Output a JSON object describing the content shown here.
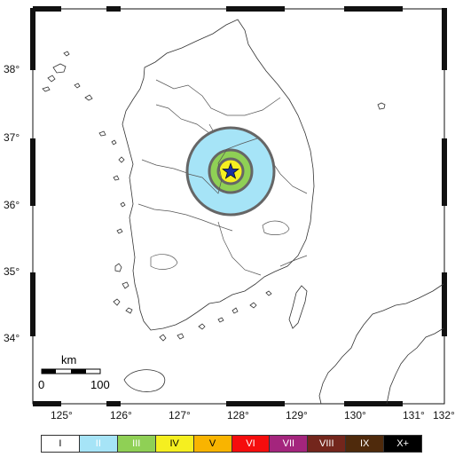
{
  "map": {
    "lon_ticks": [
      "125°",
      "126°",
      "127°",
      "128°",
      "129°",
      "130°",
      "131°",
      "132°"
    ],
    "lat_ticks": [
      "38°",
      "37°",
      "36°",
      "35°",
      "34°"
    ],
    "scale_bar": {
      "unit": "km",
      "start": "0",
      "end": "100"
    },
    "epicenter": {
      "lon": 128.05,
      "lat": 36.5,
      "marker": "star-icon",
      "color": "#1a2fa0"
    },
    "intensity_rings": [
      {
        "level": "II",
        "color": "#a6e4f7"
      },
      {
        "level": "III",
        "color": "#8fd055"
      },
      {
        "level": "IV",
        "color": "#f5ef20"
      }
    ]
  },
  "legend": {
    "items": [
      {
        "label": "I",
        "color": "#ffffff",
        "text_color": "#000000"
      },
      {
        "label": "II",
        "color": "#a6e4f7",
        "text_color": "#ffffff"
      },
      {
        "label": "III",
        "color": "#8fd055",
        "text_color": "#ffffff"
      },
      {
        "label": "IV",
        "color": "#f5ef20",
        "text_color": "#000000"
      },
      {
        "label": "V",
        "color": "#f9b400",
        "text_color": "#000000"
      },
      {
        "label": "VI",
        "color": "#f50d0d",
        "text_color": "#ffffff"
      },
      {
        "label": "VII",
        "color": "#a4257d",
        "text_color": "#ffffff"
      },
      {
        "label": "VIII",
        "color": "#73261c",
        "text_color": "#ffffff"
      },
      {
        "label": "IX",
        "color": "#4f2a0c",
        "text_color": "#ffffff"
      },
      {
        "label": "X+",
        "color": "#000000",
        "text_color": "#ffffff"
      }
    ]
  }
}
